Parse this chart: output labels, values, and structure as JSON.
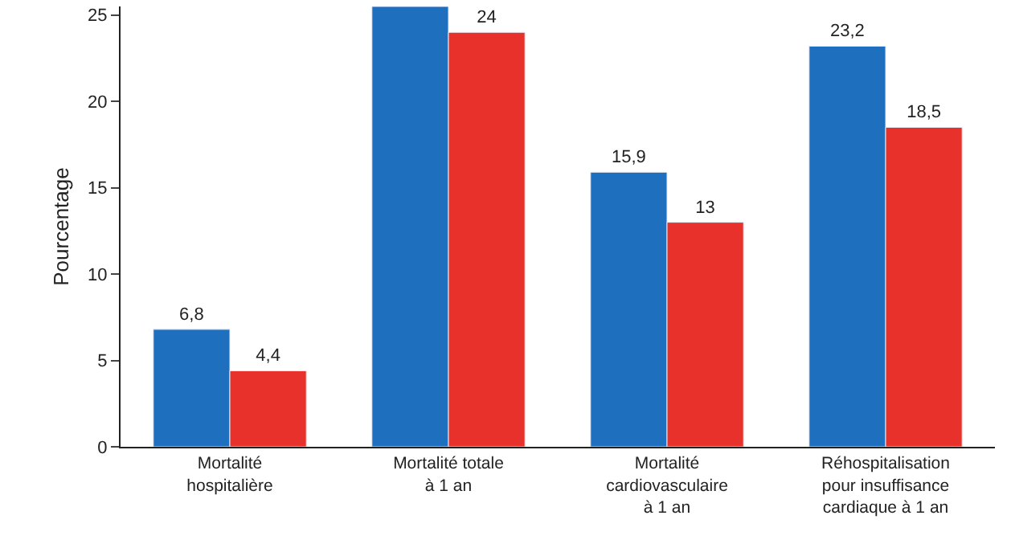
{
  "chart_data": {
    "type": "bar",
    "ylabel": "Pourcentage",
    "categories": [
      "Mortalité\nhospitalière",
      "Mortalité totale\nà 1 an",
      "Mortalité\ncardiovasculaire\nà 1 an",
      "Réhospitalisation\npour insuffisance\ncardiaque à 1 an"
    ],
    "series": [
      {
        "color": "#1f6fbf",
        "values": [
          6.8,
          25.5,
          15.9,
          23.2
        ],
        "value_labels": [
          "6,8",
          null,
          "15,9",
          "23,2"
        ]
      },
      {
        "color": "#e8312a",
        "values": [
          4.4,
          24,
          13,
          18.5
        ],
        "value_labels": [
          "4,4",
          "24",
          "13",
          "18,5"
        ]
      }
    ],
    "ylim": [
      0,
      25.5
    ],
    "yticks": [
      0,
      5,
      10,
      15,
      20,
      25
    ]
  }
}
